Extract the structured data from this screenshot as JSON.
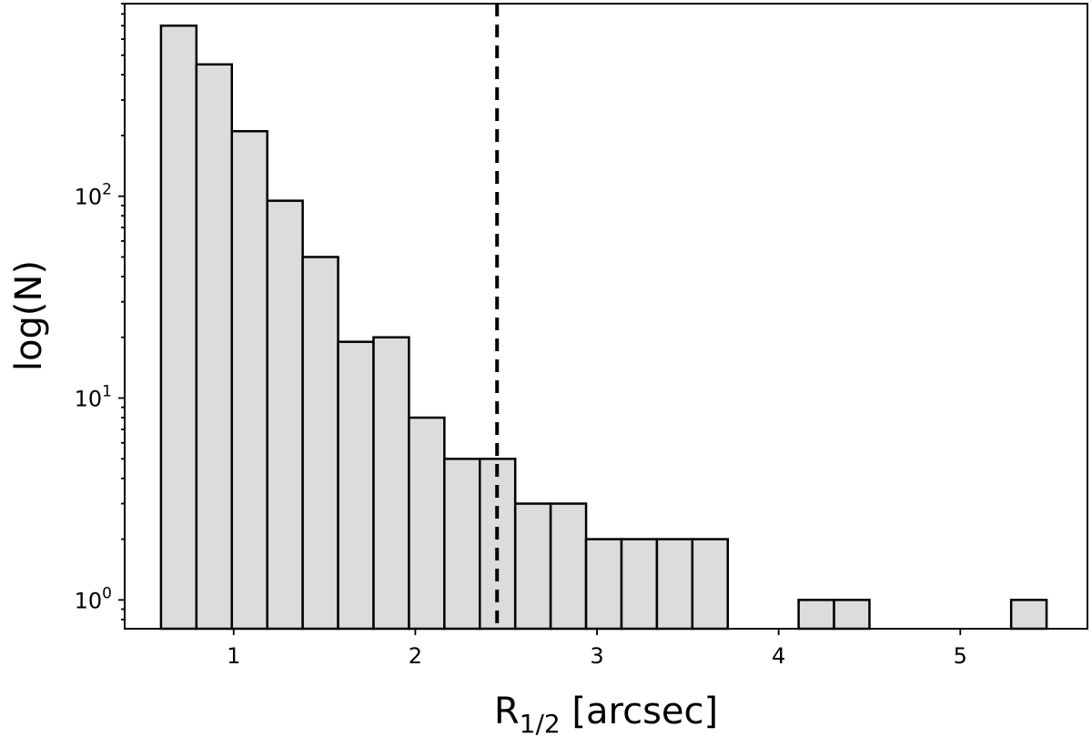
{
  "chart_data": {
    "type": "bar",
    "xlabel": "R",
    "xlabel_subscript": "1/2",
    "xlabel_suffix": " [arcsec]",
    "ylabel": "log(N)",
    "yscale": "log",
    "xlim": [
      0.4,
      5.7
    ],
    "ylim": [
      0.72,
      900
    ],
    "x_ticks": [
      1,
      2,
      3,
      4,
      5
    ],
    "y_ticks": [
      {
        "value": 1,
        "base": "10",
        "exp": "0"
      },
      {
        "value": 10,
        "base": "10",
        "exp": "1"
      },
      {
        "value": 100,
        "base": "10",
        "exp": "2"
      }
    ],
    "bin_edges": [
      0.6,
      0.795,
      0.99,
      1.185,
      1.38,
      1.575,
      1.77,
      1.965,
      2.16,
      2.355,
      2.55,
      2.745,
      2.94,
      3.135,
      3.33,
      3.525,
      3.72,
      3.915,
      4.11,
      4.305,
      4.5,
      4.695,
      4.89,
      5.085,
      5.28,
      5.475
    ],
    "counts": [
      700,
      450,
      210,
      95,
      50,
      19,
      20,
      8,
      5,
      5,
      3,
      3,
      2,
      2,
      2,
      2,
      0,
      0,
      1,
      1,
      0,
      0,
      0,
      0,
      1
    ],
    "bar_color": "#dcdcdc",
    "reference_line": {
      "x": 2.45,
      "style": "dashed",
      "color": "#000000"
    },
    "grid": false,
    "legend": "none"
  }
}
